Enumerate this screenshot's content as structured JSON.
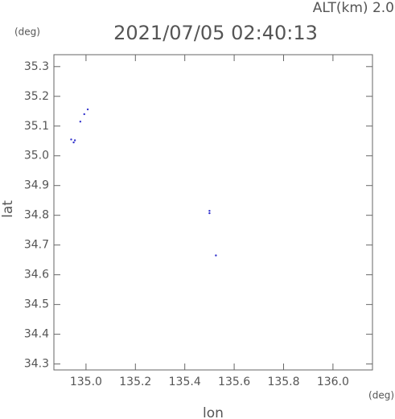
{
  "chart_data": {
    "type": "scatter",
    "title": "2021/07/05 02:40:13",
    "subtitle": "ALT(km) 2.0",
    "y_unit": "(deg)",
    "x_unit": "(deg)",
    "x_label": "lon",
    "y_label": "lat",
    "x": [
      134.94,
      134.95,
      134.955,
      134.977,
      134.993,
      135.007,
      135.5,
      135.5,
      135.526
    ],
    "y": [
      35.055,
      35.045,
      35.052,
      35.115,
      35.14,
      35.156,
      34.815,
      34.807,
      34.665
    ],
    "color": "#3333cc",
    "xlim": [
      134.87,
      136.16
    ],
    "ylim": [
      34.28,
      35.34
    ],
    "xticks": [
      {
        "value": 135,
        "label": "135.0"
      },
      135.2,
      135.4,
      135.6,
      135.8,
      {
        "value": 136,
        "label": "136.0"
      }
    ],
    "yticks": [
      34.3,
      34.4,
      34.5,
      34.6,
      34.7,
      34.8,
      34.9,
      {
        "value": 35,
        "label": "35.0"
      },
      35.1,
      35.2,
      35.3
    ]
  }
}
